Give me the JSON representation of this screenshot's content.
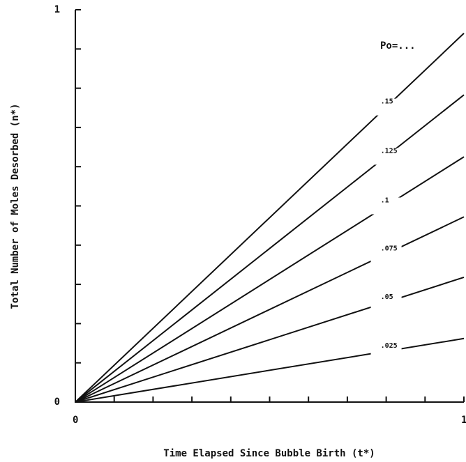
{
  "chart_data": {
    "type": "line",
    "xlabel": "Time Elapsed Since Bubble Birth (t*)",
    "ylabel": "Total Number of Moles Desorbed (n*)",
    "annotation": "Po=...",
    "x": [
      0,
      1
    ],
    "xlim": [
      0,
      1
    ],
    "ylim": [
      0,
      1
    ],
    "xticks": [
      0,
      1
    ],
    "yticks": [
      0,
      1
    ],
    "xminorticks": [
      0.1,
      0.2,
      0.3,
      0.4,
      0.5,
      0.6,
      0.7,
      0.8,
      0.9
    ],
    "yminorticks": [
      0.1,
      0.2,
      0.3,
      0.4,
      0.5,
      0.6,
      0.7,
      0.8,
      0.9
    ],
    "series": [
      {
        "name": ".15",
        "color": "#111111",
        "values": [
          0,
          0.94
        ]
      },
      {
        "name": ".125",
        "color": "#111111",
        "values": [
          0,
          0.783
        ]
      },
      {
        "name": ".1",
        "color": "#111111",
        "values": [
          0,
          0.625
        ]
      },
      {
        "name": ".075",
        "color": "#111111",
        "values": [
          0,
          0.472
        ]
      },
      {
        "name": ".05",
        "color": "#111111",
        "values": [
          0,
          0.318
        ]
      },
      {
        "name": ".025",
        "color": "#111111",
        "values": [
          0,
          0.162
        ]
      }
    ]
  }
}
